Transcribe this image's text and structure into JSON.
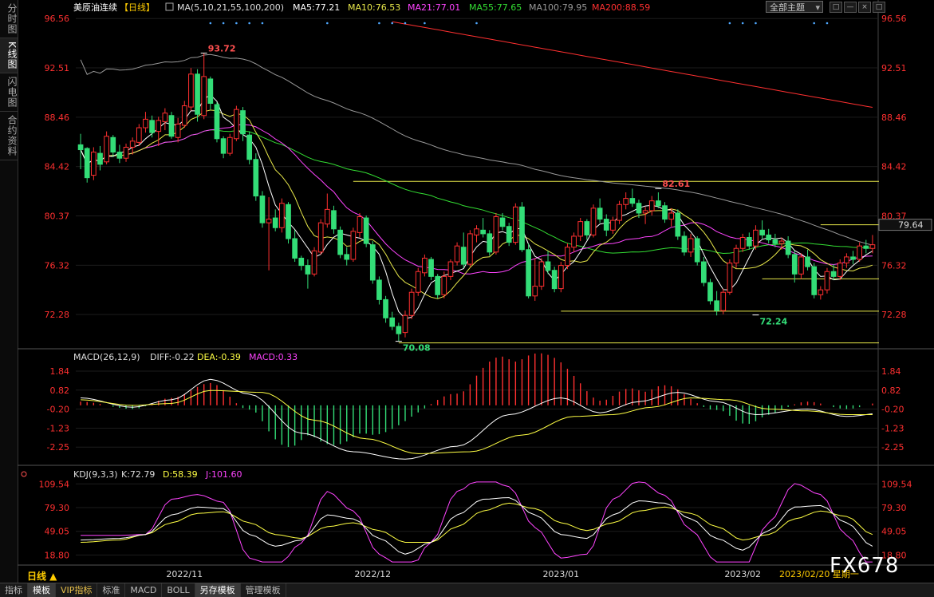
{
  "sidebar": {
    "tabs": [
      {
        "label": "分时图",
        "active": false
      },
      {
        "label": "K线图",
        "active": true
      },
      {
        "label": "闪电图",
        "active": false
      },
      {
        "label": "合约资料",
        "active": false
      }
    ]
  },
  "header": {
    "symbol": "美原油连续",
    "period": "【日线】",
    "ma_label": "MA(5,10,21,55,100,200)",
    "ma5": "MA5:77.21",
    "ma10": "MA10:76.53",
    "ma21": "MA21:77.01",
    "ma55": "MA55:77.65",
    "ma100": "MA100:79.95",
    "ma200": "MA200:88.59",
    "theme_select": "全部主题",
    "win_buttons": [
      "□",
      "—",
      "×",
      "□"
    ]
  },
  "macd_header": {
    "label": "MACD(26,12,9)",
    "diff": "DIFF:-0.22",
    "dea": "DEA:-0.39",
    "macd": "MACD:0.33"
  },
  "kdj_header": {
    "label": "KDJ(9,3,3)",
    "k": "K:72.79",
    "d": "D:58.39",
    "j": "J:101.60"
  },
  "period_button": "日线 ▲",
  "logo": "FX678",
  "bottom_tabs": [
    {
      "label": "指标",
      "active": false,
      "vip": false
    },
    {
      "label": "模板",
      "active": true,
      "vip": false
    },
    {
      "label": "VIP指标",
      "active": false,
      "vip": true
    },
    {
      "label": "标准",
      "active": false,
      "vip": false
    },
    {
      "label": "MACD",
      "active": false,
      "vip": false
    },
    {
      "label": "BOLL",
      "active": false,
      "vip": false
    },
    {
      "label": "另存模板",
      "active": true,
      "vip": false
    },
    {
      "label": "管理模板",
      "active": false,
      "vip": false
    }
  ],
  "colors": {
    "up": "#ff3030",
    "down": "#33dd77",
    "ma5": "#ffffff",
    "ma10": "#e8e84a",
    "ma21": "#ff44ff",
    "ma55": "#33dd33",
    "ma100": "#999999",
    "ma200": "#ff3030",
    "dea": "#ffff44",
    "kdj_j": "#ff44ff"
  },
  "chart_data": [
    {
      "type": "candlestick",
      "panel": "price",
      "yticks": [
        "96.56",
        "92.51",
        "88.46",
        "84.42",
        "80.37",
        "76.32",
        "72.28"
      ],
      "ylim": [
        69.4,
        96.9
      ],
      "xticks": [
        {
          "label": "2022/11",
          "index": 16
        },
        {
          "label": "2022/12",
          "index": 45
        },
        {
          "label": "2023/01",
          "index": 74
        },
        {
          "label": "2023/02",
          "index": 102
        }
      ],
      "last_date_label": "2023/02/20 星期一",
      "current_price": "79.64",
      "annotations": [
        {
          "text": "93.72",
          "index": 19,
          "value": 93.72
        },
        {
          "text": "70.08",
          "index": 49,
          "value": 70.08
        },
        {
          "text": "82.61",
          "index": 89,
          "value": 82.61
        },
        {
          "text": "72.24",
          "index": 104,
          "value": 72.24
        }
      ],
      "hlines": [
        {
          "value": 83.2,
          "from": 42,
          "to": 133
        },
        {
          "value": 79.64,
          "from": 114,
          "to": 133
        },
        {
          "value": 75.2,
          "from": 105,
          "to": 133
        },
        {
          "value": 72.55,
          "from": 74,
          "to": 133
        },
        {
          "value": 69.95,
          "from": 49,
          "to": 133
        }
      ],
      "ohlc": [
        [
          86.2,
          87.1,
          84.2,
          85.8
        ],
        [
          85.9,
          86.0,
          83.1,
          83.5
        ],
        [
          83.7,
          86.0,
          83.3,
          85.6
        ],
        [
          85.5,
          86.1,
          84.1,
          84.6
        ],
        [
          84.8,
          87.3,
          84.6,
          86.9
        ],
        [
          86.8,
          87.0,
          85.2,
          85.6
        ],
        [
          85.6,
          86.2,
          84.7,
          85.1
        ],
        [
          85.1,
          86.3,
          84.8,
          86.0
        ],
        [
          86.0,
          86.8,
          85.4,
          86.5
        ],
        [
          86.4,
          87.9,
          86.1,
          87.6
        ],
        [
          87.6,
          88.9,
          87.2,
          88.3
        ],
        [
          88.2,
          88.6,
          86.8,
          87.2
        ],
        [
          87.3,
          88.5,
          86.1,
          88.2
        ],
        [
          88.1,
          89.2,
          87.4,
          88.8
        ],
        [
          88.6,
          88.9,
          86.7,
          86.9
        ],
        [
          86.8,
          88.4,
          86.4,
          87.9
        ],
        [
          87.8,
          89.8,
          87.6,
          89.4
        ],
        [
          89.3,
          92.5,
          89.0,
          92.0
        ],
        [
          92.0,
          92.4,
          88.1,
          88.7
        ],
        [
          88.6,
          93.7,
          88.3,
          91.8
        ],
        [
          91.6,
          91.8,
          89.1,
          89.6
        ],
        [
          89.5,
          89.7,
          86.4,
          86.7
        ],
        [
          86.7,
          86.9,
          85.1,
          85.5
        ],
        [
          85.5,
          87.1,
          85.3,
          86.8
        ],
        [
          86.7,
          89.4,
          86.5,
          89.1
        ],
        [
          89.0,
          89.3,
          86.5,
          87.1
        ],
        [
          87.0,
          87.3,
          84.6,
          85.0
        ],
        [
          85.0,
          85.5,
          81.6,
          82.0
        ],
        [
          82.0,
          82.4,
          79.4,
          79.8
        ],
        [
          79.8,
          81.9,
          75.9,
          80.1
        ],
        [
          80.2,
          80.9,
          79.1,
          79.4
        ],
        [
          79.4,
          81.8,
          79.0,
          81.4
        ],
        [
          81.3,
          81.5,
          78.1,
          78.5
        ],
        [
          78.5,
          79.2,
          76.6,
          76.9
        ],
        [
          76.9,
          77.1,
          75.9,
          76.3
        ],
        [
          76.3,
          76.8,
          74.4,
          75.6
        ],
        [
          75.6,
          77.8,
          75.4,
          77.5
        ],
        [
          77.4,
          80.1,
          77.2,
          79.8
        ],
        [
          79.7,
          82.2,
          79.4,
          80.9
        ],
        [
          80.8,
          81.2,
          78.9,
          79.3
        ],
        [
          79.2,
          79.5,
          76.9,
          77.2
        ],
        [
          77.2,
          77.8,
          76.3,
          76.8
        ],
        [
          76.8,
          79.4,
          76.6,
          79.1
        ],
        [
          79.0,
          80.6,
          78.6,
          80.3
        ],
        [
          80.2,
          80.4,
          77.8,
          78.1
        ],
        [
          78.0,
          78.3,
          74.8,
          75.1
        ],
        [
          75.1,
          75.4,
          73.1,
          73.5
        ],
        [
          73.5,
          73.8,
          71.6,
          72.0
        ],
        [
          72.0,
          72.5,
          71.0,
          71.3
        ],
        [
          71.3,
          71.6,
          70.1,
          70.7
        ],
        [
          70.8,
          72.6,
          70.4,
          72.2
        ],
        [
          72.2,
          74.4,
          71.9,
          74.1
        ],
        [
          74.1,
          76.1,
          73.8,
          75.8
        ],
        [
          75.7,
          77.2,
          75.4,
          76.9
        ],
        [
          76.8,
          77.0,
          75.1,
          75.4
        ],
        [
          75.4,
          75.6,
          73.6,
          73.9
        ],
        [
          73.9,
          75.8,
          73.6,
          75.4
        ],
        [
          75.4,
          76.8,
          75.1,
          76.6
        ],
        [
          76.6,
          78.2,
          76.3,
          77.9
        ],
        [
          77.8,
          79.0,
          76.1,
          76.4
        ],
        [
          76.4,
          79.2,
          76.2,
          78.9
        ],
        [
          78.8,
          79.6,
          78.2,
          79.3
        ],
        [
          79.2,
          80.2,
          78.6,
          78.9
        ],
        [
          78.9,
          79.2,
          77.1,
          77.4
        ],
        [
          77.4,
          80.6,
          77.2,
          80.3
        ],
        [
          80.2,
          80.6,
          79.2,
          79.5
        ],
        [
          79.5,
          79.8,
          77.9,
          78.2
        ],
        [
          78.2,
          81.4,
          78.0,
          81.1
        ],
        [
          81.1,
          81.5,
          77.4,
          77.6
        ],
        [
          77.6,
          78.1,
          73.6,
          73.8
        ],
        [
          73.8,
          76.9,
          73.4,
          74.6
        ],
        [
          74.6,
          76.9,
          74.3,
          76.6
        ],
        [
          76.6,
          77.5,
          75.6,
          75.9
        ],
        [
          75.9,
          76.2,
          74.1,
          74.4
        ],
        [
          74.4,
          76.6,
          74.1,
          76.3
        ],
        [
          76.3,
          78.1,
          76.0,
          77.8
        ],
        [
          77.8,
          79.0,
          77.4,
          78.7
        ],
        [
          78.7,
          80.2,
          78.3,
          79.9
        ],
        [
          79.9,
          80.1,
          78.4,
          78.8
        ],
        [
          78.8,
          81.3,
          78.6,
          81.0
        ],
        [
          81.0,
          81.8,
          79.8,
          80.1
        ],
        [
          80.1,
          80.5,
          78.7,
          79.2
        ],
        [
          79.2,
          80.3,
          78.9,
          80.0
        ],
        [
          80.0,
          81.6,
          79.7,
          81.3
        ],
        [
          81.3,
          82.3,
          80.9,
          81.8
        ],
        [
          81.8,
          82.6,
          81.1,
          81.4
        ],
        [
          81.4,
          81.7,
          80.2,
          80.6
        ],
        [
          80.6,
          81.1,
          79.7,
          80.8
        ],
        [
          80.8,
          82.0,
          80.4,
          81.6
        ],
        [
          81.6,
          82.3,
          81.0,
          81.2
        ],
        [
          81.2,
          81.5,
          79.8,
          80.1
        ],
        [
          80.1,
          81.0,
          79.5,
          80.6
        ],
        [
          80.6,
          80.9,
          78.4,
          78.7
        ],
        [
          78.7,
          79.1,
          77.1,
          77.4
        ],
        [
          77.4,
          78.9,
          77.0,
          78.5
        ],
        [
          78.5,
          78.7,
          76.3,
          76.6
        ],
        [
          76.6,
          77.0,
          74.6,
          74.9
        ],
        [
          74.9,
          75.2,
          73.1,
          73.4
        ],
        [
          73.4,
          74.2,
          72.2,
          72.6
        ],
        [
          72.6,
          74.4,
          72.3,
          74.1
        ],
        [
          74.1,
          76.8,
          73.9,
          76.5
        ],
        [
          76.5,
          78.0,
          76.1,
          77.7
        ],
        [
          77.7,
          78.9,
          77.4,
          78.6
        ],
        [
          78.6,
          79.0,
          77.6,
          77.9
        ],
        [
          77.9,
          79.6,
          77.6,
          79.2
        ],
        [
          79.2,
          80.0,
          78.5,
          78.8
        ],
        [
          78.8,
          79.3,
          78.1,
          78.4
        ],
        [
          78.4,
          78.9,
          77.8,
          78.1
        ],
        [
          78.1,
          78.6,
          77.6,
          78.3
        ],
        [
          78.3,
          78.7,
          76.9,
          77.2
        ],
        [
          77.2,
          77.5,
          74.9,
          75.6
        ],
        [
          75.6,
          77.3,
          75.2,
          77.0
        ],
        [
          77.0,
          77.6,
          75.9,
          76.2
        ],
        [
          76.2,
          76.5,
          73.6,
          73.9
        ],
        [
          73.9,
          74.6,
          73.5,
          74.3
        ],
        [
          74.3,
          76.1,
          74.0,
          75.8
        ],
        [
          75.8,
          76.4,
          75.1,
          75.4
        ],
        [
          75.4,
          76.8,
          75.1,
          76.5
        ],
        [
          76.5,
          77.3,
          76.1,
          77.0
        ],
        [
          77.0,
          77.5,
          76.4,
          76.8
        ],
        [
          76.8,
          78.2,
          76.6,
          77.9
        ],
        [
          77.9,
          78.4,
          77.3,
          77.7
        ],
        [
          77.7,
          78.8,
          77.3,
          78.0
        ]
      ]
    },
    {
      "type": "macd",
      "panel": "macd",
      "yticks": [
        "1.84",
        "0.82",
        "-0.20",
        "-1.23",
        "-2.25"
      ],
      "ylim": [
        -3.1,
        2.4
      ],
      "diff_knots": [
        [
          0,
          0.4
        ],
        [
          8,
          -0.1
        ],
        [
          14,
          0.3
        ],
        [
          20,
          1.4
        ],
        [
          26,
          0.6
        ],
        [
          34,
          -1.5
        ],
        [
          42,
          -2.5
        ],
        [
          50,
          -2.9
        ],
        [
          58,
          -2.2
        ],
        [
          66,
          -0.5
        ],
        [
          74,
          0.4
        ],
        [
          80,
          -0.4
        ],
        [
          86,
          0.2
        ],
        [
          92,
          0.7
        ],
        [
          98,
          0.2
        ],
        [
          104,
          -0.5
        ],
        [
          112,
          -0.2
        ],
        [
          118,
          -0.6
        ],
        [
          124,
          -0.4
        ],
        [
          128,
          -0.22
        ]
      ],
      "dea_knots": [
        [
          0,
          0.3
        ],
        [
          8,
          0.0
        ],
        [
          14,
          0.1
        ],
        [
          20,
          0.8
        ],
        [
          28,
          0.7
        ],
        [
          36,
          -0.8
        ],
        [
          44,
          -1.8
        ],
        [
          52,
          -2.6
        ],
        [
          60,
          -2.5
        ],
        [
          68,
          -1.6
        ],
        [
          76,
          -0.6
        ],
        [
          82,
          -0.5
        ],
        [
          88,
          -0.1
        ],
        [
          94,
          0.4
        ],
        [
          100,
          0.3
        ],
        [
          106,
          -0.2
        ],
        [
          112,
          -0.3
        ],
        [
          118,
          -0.5
        ],
        [
          124,
          -0.5
        ],
        [
          128,
          -0.39
        ]
      ]
    },
    {
      "type": "kdj",
      "panel": "kdj",
      "yticks": [
        "109.54",
        "79.30",
        "49.05",
        "18.80"
      ],
      "ylim": [
        6,
        118
      ],
      "k_knots": [
        [
          0,
          38
        ],
        [
          6,
          40
        ],
        [
          10,
          45
        ],
        [
          14,
          70
        ],
        [
          18,
          80
        ],
        [
          22,
          78
        ],
        [
          26,
          45
        ],
        [
          30,
          30
        ],
        [
          34,
          38
        ],
        [
          38,
          70
        ],
        [
          42,
          65
        ],
        [
          46,
          40
        ],
        [
          50,
          20
        ],
        [
          54,
          35
        ],
        [
          58,
          70
        ],
        [
          62,
          90
        ],
        [
          66,
          92
        ],
        [
          70,
          70
        ],
        [
          74,
          45
        ],
        [
          78,
          40
        ],
        [
          82,
          70
        ],
        [
          86,
          88
        ],
        [
          90,
          85
        ],
        [
          94,
          65
        ],
        [
          98,
          40
        ],
        [
          102,
          25
        ],
        [
          106,
          50
        ],
        [
          110,
          80
        ],
        [
          114,
          82
        ],
        [
          118,
          60
        ],
        [
          122,
          30
        ],
        [
          126,
          55
        ],
        [
          128,
          72.79
        ]
      ],
      "d_knots": [
        [
          0,
          35
        ],
        [
          6,
          38
        ],
        [
          10,
          45
        ],
        [
          14,
          60
        ],
        [
          18,
          72
        ],
        [
          22,
          74
        ],
        [
          26,
          60
        ],
        [
          30,
          45
        ],
        [
          34,
          40
        ],
        [
          38,
          55
        ],
        [
          42,
          60
        ],
        [
          46,
          50
        ],
        [
          50,
          35
        ],
        [
          54,
          35
        ],
        [
          58,
          55
        ],
        [
          62,
          75
        ],
        [
          66,
          85
        ],
        [
          70,
          78
        ],
        [
          74,
          60
        ],
        [
          78,
          50
        ],
        [
          82,
          60
        ],
        [
          86,
          75
        ],
        [
          90,
          80
        ],
        [
          94,
          72
        ],
        [
          98,
          55
        ],
        [
          102,
          38
        ],
        [
          106,
          45
        ],
        [
          110,
          65
        ],
        [
          114,
          75
        ],
        [
          118,
          68
        ],
        [
          122,
          45
        ],
        [
          126,
          48
        ],
        [
          128,
          58.39
        ]
      ]
    }
  ]
}
